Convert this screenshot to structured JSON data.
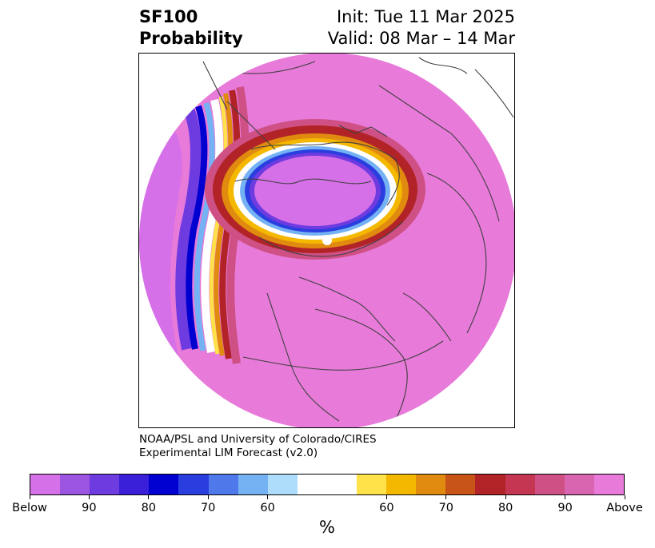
{
  "title": {
    "variable": "SF100",
    "product": "Probability",
    "init": "Init: Tue 11 Mar 2025",
    "valid": "Valid: 08 Mar – 14 Mar"
  },
  "credit": {
    "line1": "NOAA/PSL and University of Colorado/CIRES",
    "line2": "Experimental LIM Forecast (v2.0)"
  },
  "colorbar": {
    "units": "%",
    "colors": [
      "#d670e8",
      "#9b55e0",
      "#6e3be0",
      "#3a1fd8",
      "#0000d0",
      "#2a3ee0",
      "#4f79ea",
      "#74b2f4",
      "#aedcfb",
      "#ffffff",
      "#ffffff",
      "#ffe24a",
      "#f5b800",
      "#e08a10",
      "#c85417",
      "#b22327",
      "#c43651",
      "#cf5085",
      "#d964b0",
      "#e87ad9"
    ],
    "tick_labels": [
      "Below",
      "90",
      "80",
      "70",
      "60",
      "60",
      "70",
      "80",
      "90",
      "Above"
    ]
  },
  "map": {
    "projection": "north polar stereographic",
    "below_color": "#d670e8",
    "above_color": "#e87ad9",
    "pole_marker_color": "#ffffff"
  }
}
